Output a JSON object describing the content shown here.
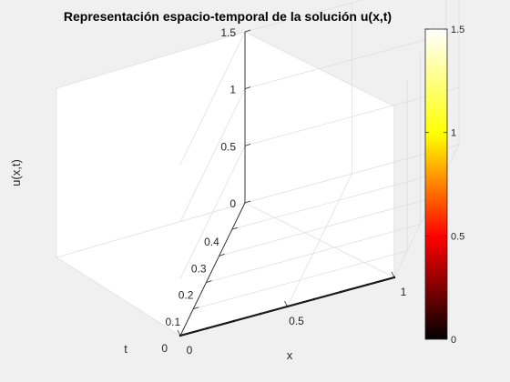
{
  "chart_data": {
    "type": "surface",
    "title": "Representación espacio-temporal de la solución u(x,t)",
    "xlabel": "x",
    "ylabel": "t",
    "zlabel": "u(x,t)",
    "xlim": [
      0,
      1
    ],
    "ylim": [
      0,
      0.5
    ],
    "zlim": [
      0,
      1.5
    ],
    "xticks": [
      "0",
      "0.5",
      "1"
    ],
    "yticks": [
      "0",
      "0.1",
      "0.2",
      "0.3",
      "0.4"
    ],
    "zticks": [
      "0",
      "0.5",
      "1",
      "1.5"
    ],
    "surface": {
      "x": [
        0,
        0.125,
        0.25,
        0.375,
        0.5,
        0.625,
        0.75,
        0.875,
        1
      ],
      "t": [
        0
      ],
      "u": [
        [
          0,
          0,
          0,
          0,
          0,
          0,
          0,
          0,
          0
        ]
      ]
    },
    "colorbar": {
      "colormap": "hot",
      "limits": [
        0,
        1.5
      ],
      "ticks": [
        "0",
        "0.5",
        "1",
        "1.5"
      ]
    },
    "grid": true
  }
}
